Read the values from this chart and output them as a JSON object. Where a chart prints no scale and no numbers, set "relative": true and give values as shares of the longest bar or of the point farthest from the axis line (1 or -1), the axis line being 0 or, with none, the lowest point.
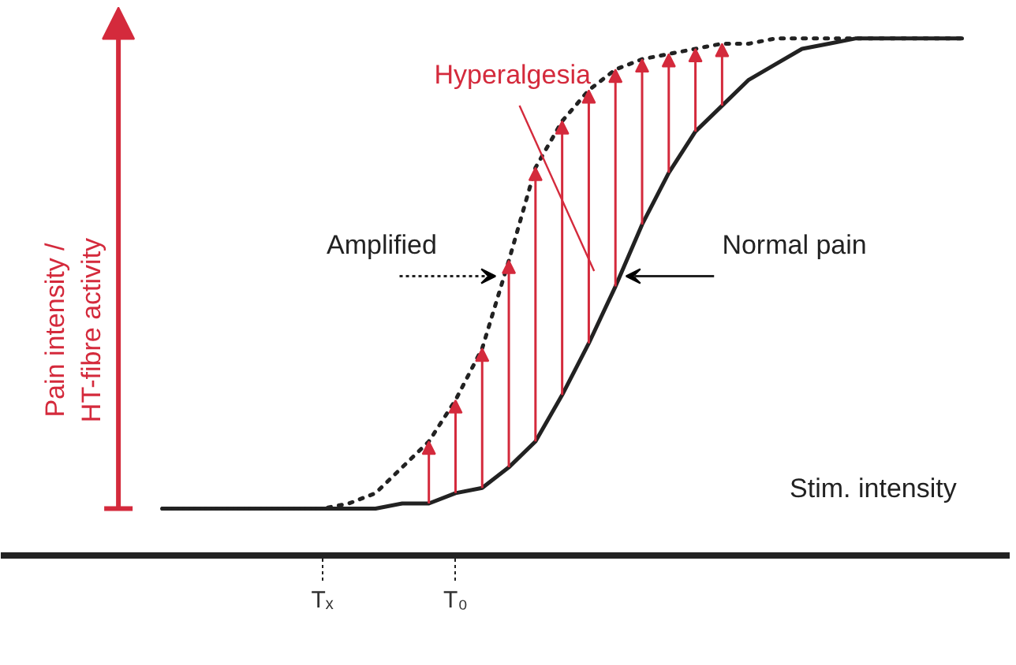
{
  "chart_data": {
    "type": "line",
    "relative": true,
    "xlabel": "Stim. intensity",
    "ylabel": "Pain intensity /\nHT-fibre activity",
    "categories": [
      null,
      null,
      null,
      null,
      null,
      null,
      "Tₓ",
      null,
      null,
      null,
      null,
      "T₀",
      null,
      null,
      null,
      null,
      null,
      null,
      null,
      null,
      null,
      null,
      null,
      null,
      null,
      null,
      null,
      null,
      null,
      null,
      null
    ],
    "series": [
      {
        "name": "Normal pain",
        "color": "#222222",
        "line_style": "solid",
        "values": [
          0.09,
          0.09,
          0.09,
          0.09,
          0.09,
          0.09,
          0.09,
          0.09,
          0.09,
          0.1,
          0.1,
          0.12,
          0.13,
          0.17,
          0.22,
          0.31,
          0.41,
          0.52,
          0.64,
          0.74,
          0.82,
          0.87,
          0.92,
          0.95,
          0.98,
          0.99,
          1,
          1,
          1,
          1,
          1
        ]
      },
      {
        "name": "Amplified",
        "color": "#222222",
        "line_style": "dotted",
        "values": [
          0.09,
          0.09,
          0.09,
          0.09,
          0.09,
          0.09,
          0.09,
          0.1,
          0.12,
          0.17,
          0.22,
          0.3,
          0.4,
          0.57,
          0.75,
          0.84,
          0.9,
          0.94,
          0.96,
          0.97,
          0.98,
          0.99,
          0.99,
          1,
          1,
          1,
          1,
          1,
          1,
          1,
          1
        ]
      }
    ],
    "annotations": [
      "Hyperalgesia"
    ],
    "grid": false,
    "legend": false
  }
}
